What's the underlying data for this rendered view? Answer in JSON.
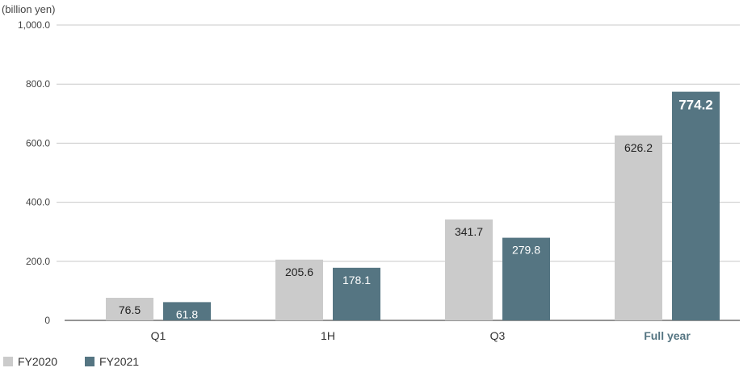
{
  "chart_data": {
    "type": "bar",
    "unit_label": "(billion yen)",
    "categories": [
      "Q1",
      "1H",
      "Q3",
      "Full year"
    ],
    "highlight_category": "Full year",
    "series": [
      {
        "name": "FY2020",
        "color": "#cbcbcb",
        "values": [
          76.5,
          205.6,
          341.7,
          626.2
        ]
      },
      {
        "name": "FY2021",
        "color": "#557582",
        "values": [
          61.8,
          178.1,
          279.8,
          774.2
        ]
      }
    ],
    "value_labels": [
      [
        "76.5",
        "205.6",
        "341.7",
        "626.2"
      ],
      [
        "61.8",
        "178.1",
        "279.8",
        "774.2"
      ]
    ],
    "ylim": [
      0,
      1000
    ],
    "yticks": [
      0,
      200,
      400,
      600,
      800,
      1000
    ],
    "ytick_labels": [
      "0",
      "200.0",
      "400.0",
      "600.0",
      "800.0",
      "1,000.0"
    ],
    "grid": true,
    "legend_position": "bottom-left",
    "highlight_color": "#557582"
  }
}
